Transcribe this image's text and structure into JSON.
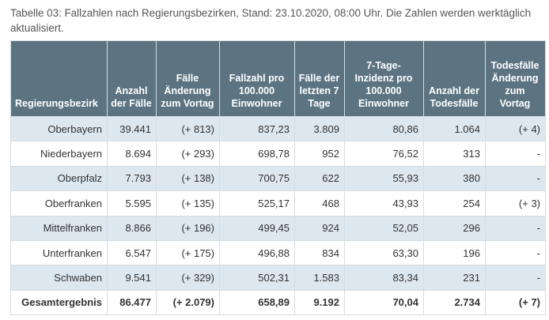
{
  "caption": "Tabelle 03: Fallzahlen nach Regierungsbezirken, Stand: 23.10.2020, 08:00 Uhr. Die Zahlen werden werktäglich aktualisiert.",
  "headers": {
    "region": "Regierungsbezirk",
    "cases": "Anzahl der Fälle",
    "cases_change": "Fälle Änderung zum Vortag",
    "per100k": "Fallzahl pro 100.000 Einwohner",
    "last7": "Fälle der letzten 7 Tage",
    "incidence7": "7-Tage-Inzidenz pro 100.000 Einwohner",
    "deaths": "Anzahl der Todesfälle",
    "deaths_change": "Todesfälle Änderung zum Vortag"
  },
  "rows": [
    {
      "region": "Oberbayern",
      "cases": "39.441",
      "cases_change": "(+ 813)",
      "per100k": "837,23",
      "last7": "3.809",
      "incidence7": "80,86",
      "deaths": "1.064",
      "deaths_change": "(+ 4)"
    },
    {
      "region": "Niederbayern",
      "cases": "8.694",
      "cases_change": "(+ 293)",
      "per100k": "698,78",
      "last7": "952",
      "incidence7": "76,52",
      "deaths": "313",
      "deaths_change": "-"
    },
    {
      "region": "Oberpfalz",
      "cases": "7.793",
      "cases_change": "(+ 138)",
      "per100k": "700,75",
      "last7": "622",
      "incidence7": "55,93",
      "deaths": "380",
      "deaths_change": "-"
    },
    {
      "region": "Oberfranken",
      "cases": "5.595",
      "cases_change": "(+ 135)",
      "per100k": "525,17",
      "last7": "468",
      "incidence7": "43,93",
      "deaths": "254",
      "deaths_change": "(+ 3)"
    },
    {
      "region": "Mittelfranken",
      "cases": "8.866",
      "cases_change": "(+ 196)",
      "per100k": "499,45",
      "last7": "924",
      "incidence7": "52,05",
      "deaths": "296",
      "deaths_change": "-"
    },
    {
      "region": "Unterfranken",
      "cases": "6.547",
      "cases_change": "(+ 175)",
      "per100k": "496,88",
      "last7": "834",
      "incidence7": "63,30",
      "deaths": "196",
      "deaths_change": "-"
    },
    {
      "region": "Schwaben",
      "cases": "9.541",
      "cases_change": "(+ 329)",
      "per100k": "502,31",
      "last7": "1.583",
      "incidence7": "83,34",
      "deaths": "231",
      "deaths_change": "-"
    }
  ],
  "total": {
    "region": "Gesamtergebnis",
    "cases": "86.477",
    "cases_change": "(+ 2.079)",
    "per100k": "658,89",
    "last7": "9.192",
    "incidence7": "70,04",
    "deaths": "2.734",
    "deaths_change": "(+ 7)"
  },
  "colors": {
    "header_bg": "#5c7482",
    "row_stripe": "#dde7ef",
    "border": "#d6dde2"
  }
}
